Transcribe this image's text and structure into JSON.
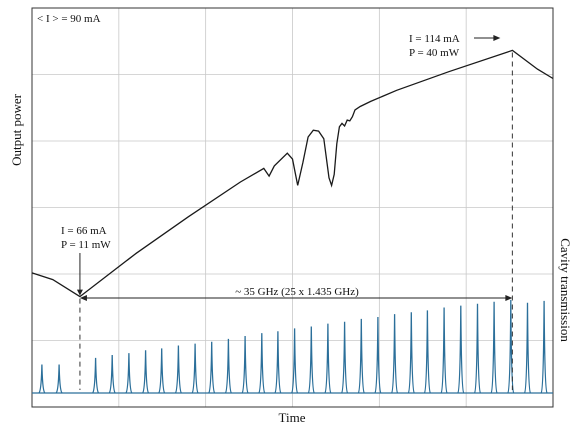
{
  "chart_data": {
    "type": "line",
    "title": "",
    "xlabel": "Time",
    "ylabel_left": "Output power",
    "ylabel_right": "Cavity transmission",
    "xlim": [
      0,
      100
    ],
    "ylim_power": [
      0,
      45
    ],
    "grid": true,
    "legend": "none",
    "avg_current_label": "< I > = 90 mA",
    "annotations": {
      "min": {
        "line1": "I = 66 mA",
        "line2": "P = 11 mW",
        "current_mA": 66,
        "power_mW": 11,
        "time": 9.2
      },
      "max": {
        "line1": "I = 114 mA",
        "line2": "P = 40 mW",
        "current_mA": 114,
        "power_mW": 40,
        "time": 92.2
      },
      "span": {
        "text": "~ 35 GHz (25 x 1.435 GHz)",
        "from_time": 9.2,
        "to_time": 92.2
      }
    },
    "series": [
      {
        "role": "output_power",
        "color": "#1a1a1a",
        "x": [
          0,
          4,
          9.2,
          20,
          30,
          40,
          44.5,
          45.5,
          46.5,
          49,
          50,
          51,
          52,
          53,
          54,
          55,
          56,
          57,
          57.5,
          58,
          58.5,
          59,
          59.5,
          60,
          60.5,
          61,
          61.5,
          62,
          63,
          65,
          70,
          80,
          92.2,
          97,
          100
        ],
        "y": [
          13.8,
          13.0,
          11.0,
          16.1,
          20.4,
          24.5,
          26.1,
          25.2,
          26.4,
          27.9,
          27.2,
          24.1,
          26.8,
          29.8,
          30.6,
          30.5,
          29.6,
          25.0,
          24.1,
          25.4,
          29.0,
          31.0,
          31.4,
          31.1,
          31.8,
          31.7,
          32.2,
          33.0,
          33.4,
          34.0,
          35.3,
          37.5,
          40.0,
          37.8,
          36.7
        ]
      },
      {
        "role": "cavity_transmission",
        "color": "#2b6f9a",
        "peak_times": [
          1.9,
          5.2,
          12.2,
          15.4,
          18.6,
          21.8,
          24.9,
          28.1,
          31.3,
          34.5,
          37.7,
          40.9,
          44.1,
          47.2,
          50.4,
          53.6,
          56.8,
          60.0,
          63.2,
          66.4,
          69.6,
          72.8,
          75.9,
          79.1,
          82.3,
          85.5,
          88.7,
          91.9,
          95.1,
          98.3
        ],
        "peak_heights": [
          0.3,
          0.3,
          0.37,
          0.4,
          0.42,
          0.45,
          0.47,
          0.5,
          0.52,
          0.54,
          0.57,
          0.6,
          0.63,
          0.65,
          0.68,
          0.7,
          0.73,
          0.75,
          0.78,
          0.8,
          0.83,
          0.85,
          0.87,
          0.9,
          0.92,
          0.94,
          0.96,
          0.98,
          0.95,
          0.97
        ]
      }
    ]
  }
}
